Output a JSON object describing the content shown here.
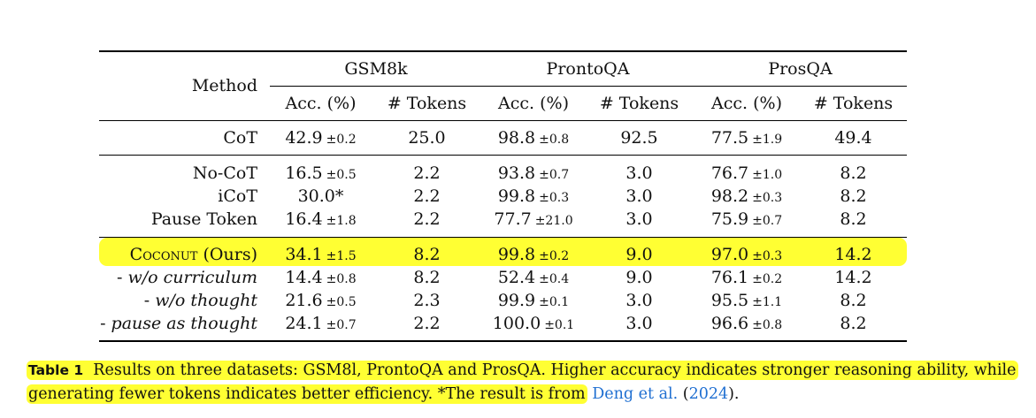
{
  "table": {
    "method_header": "Method",
    "groups": [
      "GSM8k",
      "ProntoQA",
      "ProsQA"
    ],
    "subheaders": [
      "Acc. (%)",
      "# Tokens",
      "Acc. (%)",
      "# Tokens",
      "Acc. (%)",
      "# Tokens"
    ],
    "rows": [
      {
        "method": "CoT",
        "cells": [
          {
            "v": "42.9",
            "s": "±0.2"
          },
          {
            "v": "25.0"
          },
          {
            "v": "98.8",
            "s": "±0.8"
          },
          {
            "v": "92.5"
          },
          {
            "v": "77.5",
            "s": "±1.9"
          },
          {
            "v": "49.4"
          }
        ]
      },
      {
        "method": "No-CoT",
        "cells": [
          {
            "v": "16.5",
            "s": "±0.5"
          },
          {
            "v": "2.2"
          },
          {
            "v": "93.8",
            "s": "±0.7"
          },
          {
            "v": "3.0"
          },
          {
            "v": "76.7",
            "s": "±1.0"
          },
          {
            "v": "8.2"
          }
        ]
      },
      {
        "method": "iCoT",
        "cells": [
          {
            "v": "30.0*"
          },
          {
            "v": "2.2"
          },
          {
            "v": "99.8",
            "s": "±0.3"
          },
          {
            "v": "3.0"
          },
          {
            "v": "98.2",
            "s": "±0.3"
          },
          {
            "v": "8.2"
          }
        ]
      },
      {
        "method": "Pause Token",
        "cells": [
          {
            "v": "16.4",
            "s": "±1.8"
          },
          {
            "v": "2.2"
          },
          {
            "v": "77.7",
            "s": "±21.0"
          },
          {
            "v": "3.0"
          },
          {
            "v": "75.9",
            "s": "±0.7"
          },
          {
            "v": "8.2"
          }
        ]
      },
      {
        "method_sc": "Coconut",
        "method_rest": " (Ours)",
        "cells": [
          {
            "v": "34.1",
            "s": "±1.5"
          },
          {
            "v": "8.2"
          },
          {
            "v": "99.8",
            "s": "±0.2"
          },
          {
            "v": "9.0"
          },
          {
            "v": "97.0",
            "s": "±0.3"
          },
          {
            "v": "14.2"
          }
        ]
      },
      {
        "method_prefix": "- ",
        "method_it": "w/o curriculum",
        "cells": [
          {
            "v": "14.4",
            "s": "±0.8"
          },
          {
            "v": "8.2"
          },
          {
            "v": "52.4",
            "s": "±0.4"
          },
          {
            "v": "9.0"
          },
          {
            "v": "76.1",
            "s": "±0.2"
          },
          {
            "v": "14.2"
          }
        ]
      },
      {
        "method_prefix": "- ",
        "method_it": "w/o thought",
        "cells": [
          {
            "v": "21.6",
            "s": "±0.5"
          },
          {
            "v": "2.3"
          },
          {
            "v": "99.9",
            "s": "±0.1"
          },
          {
            "v": "3.0"
          },
          {
            "v": "95.5",
            "s": "±1.1"
          },
          {
            "v": "8.2"
          }
        ]
      },
      {
        "method_prefix": "- ",
        "method_it": "pause as thought",
        "cells": [
          {
            "v": "24.1",
            "s": "±0.7"
          },
          {
            "v": "2.2"
          },
          {
            "v": "100.0",
            "s": "±0.1"
          },
          {
            "v": "3.0"
          },
          {
            "v": "96.6",
            "s": "±0.8"
          },
          {
            "v": "8.2"
          }
        ]
      }
    ]
  },
  "caption": {
    "label": "Table 1",
    "text": "Results on three datasets: GSM8l, ProntoQA and ProsQA. Higher accuracy indicates stronger reasoning ability, while generating fewer tokens indicates better efficiency. *The result is from",
    "cite_authors": "Deng et al.",
    "cite_open": " (",
    "cite_year": "2024",
    "cite_close": ")."
  },
  "colors": {
    "highlight": "#ffff33",
    "link": "#1f6fd1"
  }
}
